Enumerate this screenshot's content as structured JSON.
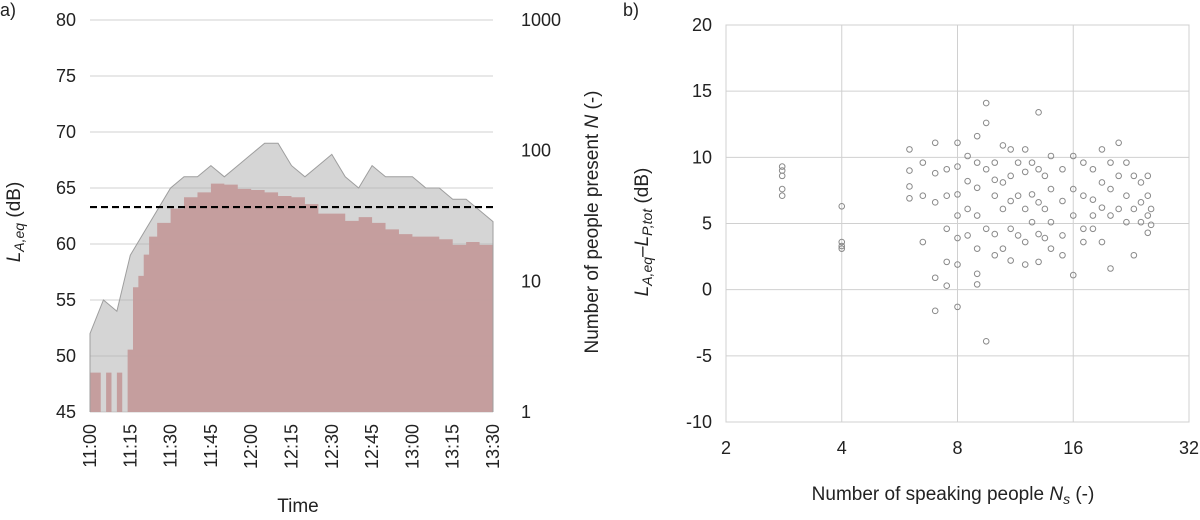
{
  "chart_data": [
    {
      "panel_label": "a)",
      "type": "area",
      "xlabel": "Time",
      "ylabel": "L",
      "ylabel_sub": "A,eq",
      "ylabel_unit": " (dB)",
      "y2label": "Number of people present ",
      "y2label_var": "N",
      "y2label_unit": " (-)",
      "ylim": [
        45,
        80
      ],
      "yticks": [
        "45",
        "50",
        "55",
        "60",
        "65",
        "70",
        "75",
        "80"
      ],
      "y2_scale": "log",
      "y2lim": [
        1,
        1000
      ],
      "y2ticks": [
        "1",
        "10",
        "100",
        "1000"
      ],
      "xticks": [
        "11:00",
        "11:15",
        "11:30",
        "11:45",
        "12:00",
        "12:15",
        "12:30",
        "12:45",
        "13:00",
        "13:15",
        "13:30"
      ],
      "grid": "horizontal",
      "colors": {
        "laeq": "#b3b3b3",
        "people": "#d98080",
        "threshold": "#000000"
      },
      "series": [
        {
          "kind": "area",
          "axis": "left",
          "x": [
            "11:00",
            "11:05",
            "11:10",
            "11:15",
            "11:20",
            "11:25",
            "11:30",
            "11:35",
            "11:40",
            "11:45",
            "11:50",
            "11:55",
            "12:00",
            "12:05",
            "12:10",
            "12:15",
            "12:20",
            "12:25",
            "12:30",
            "12:35",
            "12:40",
            "12:45",
            "12:50",
            "12:55",
            "13:00",
            "13:05",
            "13:10",
            "13:15",
            "13:20",
            "13:25",
            "13:30"
          ],
          "values": [
            52,
            55,
            54,
            59,
            61,
            63,
            65,
            66,
            66,
            67,
            66,
            67,
            68,
            69,
            69,
            67,
            66,
            67,
            68,
            66,
            65,
            67,
            66,
            66,
            66,
            65,
            65,
            64,
            64,
            63,
            62
          ]
        },
        {
          "kind": "area",
          "axis": "right",
          "x": [
            "11:00",
            "11:02",
            "11:04",
            "11:06",
            "11:08",
            "11:10",
            "11:12",
            "11:14",
            "11:16",
            "11:18",
            "11:20",
            "11:22",
            "11:25",
            "11:30",
            "11:35",
            "11:40",
            "11:45",
            "11:50",
            "11:55",
            "12:00",
            "12:05",
            "12:10",
            "12:15",
            "12:20",
            "12:25",
            "12:30",
            "12:35",
            "12:40",
            "12:45",
            "12:50",
            "12:55",
            "13:00",
            "13:05",
            "13:10",
            "13:15",
            "13:20",
            "13:25",
            "13:30"
          ],
          "values": [
            2,
            2,
            1,
            2,
            1,
            2,
            1,
            3,
            9,
            11,
            16,
            22,
            28,
            36,
            44,
            48,
            56,
            55,
            51,
            50,
            48,
            45,
            44,
            39,
            33,
            33,
            29,
            31,
            28,
            25,
            23,
            22,
            22,
            21,
            19,
            20,
            19,
            19
          ]
        },
        {
          "kind": "hline",
          "axis": "left",
          "y": 63.3
        }
      ]
    },
    {
      "panel_label": "b)",
      "type": "scatter",
      "xlabel": "Number of speaking people ",
      "xlabel_var": "N",
      "xlabel_sub": "s",
      "xlabel_unit": " (-)",
      "ylabel_parts": [
        "L",
        "A,eq",
        "–L",
        "P,tot",
        "  (dB)"
      ],
      "xscale": "log2",
      "xlim": [
        2,
        32
      ],
      "xticks": [
        "2",
        "4",
        "8",
        "16",
        "32"
      ],
      "ylim": [
        -10,
        20
      ],
      "yticks": [
        "-10",
        "-5",
        "0",
        "5",
        "10",
        "15",
        "20"
      ],
      "grid": "both",
      "colors": {
        "marker": "#8a8a8a"
      },
      "series": [
        {
          "x": [
            2.8,
            2.8,
            2.8,
            2.8,
            2.8,
            4,
            4,
            4,
            4,
            6,
            6,
            6,
            6,
            6.5,
            6.5,
            6.5,
            7,
            7,
            7,
            7,
            7,
            7.5,
            7.5,
            7.5,
            7.5,
            7.5,
            8,
            8,
            8,
            8,
            8,
            8,
            8,
            8.5,
            8.5,
            8.5,
            8.5,
            9,
            9,
            9,
            9,
            9,
            9,
            9,
            9.5,
            9.5,
            9.5,
            9.5,
            9.5,
            10,
            10,
            10,
            10,
            10,
            10.5,
            10.5,
            10.5,
            10.5,
            11,
            11,
            11,
            11,
            11,
            11.5,
            11.5,
            11.5,
            12,
            12,
            12,
            12,
            12,
            12.5,
            12.5,
            12.5,
            13,
            13,
            13,
            13,
            13,
            13.5,
            13.5,
            13.5,
            14,
            14,
            14,
            14,
            15,
            15,
            15,
            15,
            16,
            16,
            16,
            16,
            17,
            17,
            17,
            17,
            18,
            18,
            18,
            18,
            19,
            19,
            19,
            19,
            20,
            20,
            20,
            20,
            21,
            21,
            21,
            22,
            22,
            22,
            23,
            23,
            23,
            24,
            24,
            24,
            25,
            25,
            25,
            25,
            25.5,
            25.5
          ],
          "y": [
            9.3,
            9,
            8.6,
            7.6,
            7.1,
            6.3,
            3.6,
            3.3,
            3.1,
            10.6,
            9,
            7.8,
            6.9,
            9.6,
            7.1,
            3.6,
            11.1,
            8.8,
            6.6,
            0.9,
            -1.6,
            9.1,
            7.1,
            4.6,
            2.1,
            0.3,
            11.1,
            9.3,
            7.2,
            5.6,
            3.9,
            1.9,
            -1.3,
            10.1,
            8.2,
            6.1,
            4.1,
            11.6,
            9.6,
            7.7,
            5.6,
            3.1,
            1.2,
            0.4,
            14.1,
            12.6,
            9.1,
            4.6,
            -3.9,
            9.6,
            8.3,
            7.1,
            4.2,
            2.6,
            10.9,
            8.1,
            6.1,
            3.1,
            10.6,
            8.6,
            6.7,
            4.6,
            2.2,
            9.6,
            7.1,
            4.1,
            10.6,
            8.9,
            6.1,
            3.6,
            1.9,
            9.6,
            7.2,
            5.1,
            13.4,
            9.1,
            6.6,
            4.2,
            2.1,
            8.6,
            6.1,
            3.9,
            10.1,
            7.6,
            5.1,
            3.1,
            9.1,
            6.7,
            4.1,
            2.6,
            10.1,
            7.6,
            5.6,
            1.1,
            9.6,
            7.1,
            4.6,
            3.6,
            9.1,
            6.8,
            5.6,
            4.6,
            10.6,
            8.1,
            6.2,
            3.6,
            9.6,
            7.6,
            5.6,
            1.6,
            11.1,
            8.6,
            6.1,
            9.6,
            7.1,
            5.1,
            8.6,
            6.1,
            2.6,
            8.1,
            6.6,
            5.1,
            8.6,
            7.1,
            5.6,
            4.3,
            6.1,
            4.9
          ]
        }
      ]
    }
  ]
}
